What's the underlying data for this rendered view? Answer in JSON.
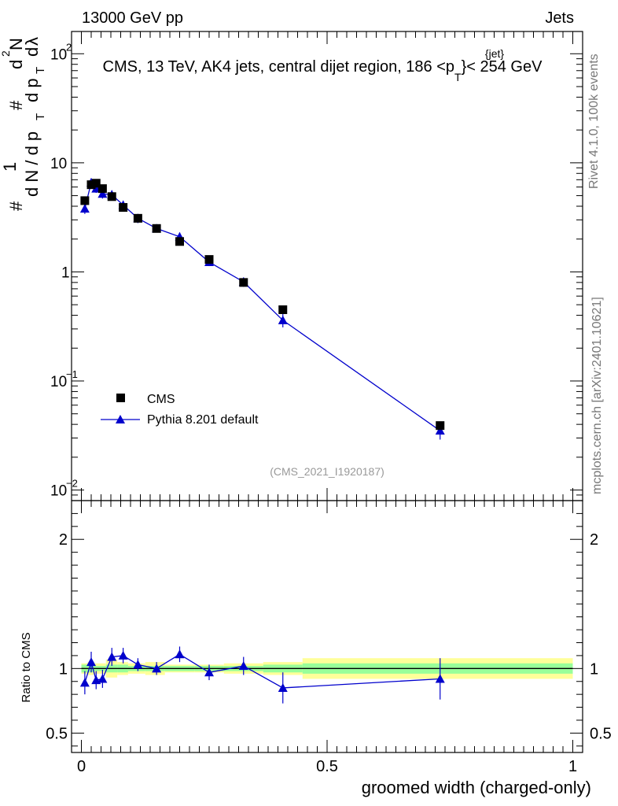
{
  "header": {
    "energy_label": "13000 GeV pp",
    "category_label": "Jets"
  },
  "side_text": {
    "rivet": "Rivet 4.1.0,  100k events",
    "mcplots": "mcplots.cern.ch [arXiv:2401.10621]"
  },
  "chart_data": [
    {
      "type": "scatter",
      "panel": "main",
      "title": "CMS, 13 TeV, AK4 jets, central dijet region, 186 <p",
      "title_sup": "{jet}",
      "title_sub": "T",
      "title_end": "}< 254 GeV",
      "ylabel_parts": [
        "#",
        "1",
        "d N / d p",
        "T",
        "#",
        "d p",
        "T",
        "d",
        "2",
        "N",
        "d",
        "λ"
      ],
      "yscale": "log",
      "ylim": [
        0.008,
        160
      ],
      "xlim": [
        -0.02,
        1.02
      ],
      "ytick_labels": [
        {
          "value": 100,
          "base": "10",
          "exp": "2"
        },
        {
          "value": 10,
          "base": "10",
          "exp": ""
        },
        {
          "value": 1,
          "base": "1",
          "exp": ""
        },
        {
          "value": 0.1,
          "base": "10",
          "exp": "−1"
        },
        {
          "value": 0.01,
          "base": "10",
          "exp": "−2"
        }
      ],
      "watermark": "(CMS_2021_I1920187)",
      "legend": {
        "placement": "center-left",
        "entries": [
          "CMS",
          "Pythia 8.201 default"
        ]
      },
      "series": [
        {
          "name": "CMS",
          "marker": "square",
          "color": "#000000",
          "x": [
            0.007,
            0.02,
            0.03,
            0.043,
            0.062,
            0.085,
            0.115,
            0.153,
            0.2,
            0.26,
            0.33,
            0.41,
            0.73
          ],
          "y": [
            4.5,
            6.3,
            6.5,
            5.8,
            4.9,
            3.9,
            3.1,
            2.5,
            1.9,
            1.3,
            0.8,
            0.45,
            0.039
          ]
        },
        {
          "name": "Pythia 8.201 default",
          "marker": "triangle",
          "color": "#0000cc",
          "x": [
            0.007,
            0.02,
            0.03,
            0.043,
            0.062,
            0.085,
            0.115,
            0.153,
            0.2,
            0.26,
            0.33,
            0.41,
            0.73
          ],
          "y": [
            3.8,
            6.6,
            5.8,
            5.2,
            5.1,
            4.1,
            3.1,
            2.5,
            2.1,
            1.23,
            0.81,
            0.36,
            0.035
          ],
          "err_lo": [
            0.4,
            0.6,
            0.5,
            0.5,
            0.5,
            0.4,
            0.3,
            0.2,
            0.2,
            0.1,
            0.08,
            0.05,
            0.006
          ],
          "err_hi": [
            0.4,
            0.6,
            0.5,
            0.5,
            0.5,
            0.4,
            0.3,
            0.2,
            0.2,
            0.1,
            0.08,
            0.05,
            0.006
          ]
        }
      ]
    },
    {
      "type": "line",
      "panel": "ratio",
      "ylabel": "Ratio to CMS",
      "xlabel": "groomed width (charged-only)",
      "ylim": [
        0.35,
        2.3
      ],
      "xlim": [
        -0.02,
        1.02
      ],
      "ytick_labels": [
        "0.5",
        "1",
        "2"
      ],
      "ytick_values": [
        0.5,
        1,
        2
      ],
      "xtick_labels": [
        "0",
        "0.5",
        "1"
      ],
      "xtick_values": [
        0,
        0.5,
        1
      ],
      "uncertainty_bands": {
        "x_edges": [
          0.0,
          0.013,
          0.025,
          0.036,
          0.05,
          0.073,
          0.095,
          0.13,
          0.17,
          0.23,
          0.29,
          0.37,
          0.45,
          1.0
        ],
        "stat_lo": [
          0.97,
          0.97,
          0.98,
          0.98,
          0.97,
          0.97,
          0.98,
          0.98,
          0.98,
          0.98,
          0.98,
          0.97,
          0.96
        ],
        "stat_hi": [
          1.03,
          1.03,
          1.02,
          1.02,
          1.03,
          1.03,
          1.02,
          1.02,
          1.02,
          1.02,
          1.02,
          1.03,
          1.04
        ],
        "total_lo": [
          0.96,
          0.95,
          0.96,
          0.96,
          0.93,
          0.95,
          0.96,
          0.95,
          0.97,
          0.97,
          0.96,
          0.95,
          0.92
        ],
        "total_hi": [
          1.04,
          1.05,
          1.04,
          1.04,
          1.07,
          1.05,
          1.04,
          1.05,
          1.03,
          1.03,
          1.04,
          1.05,
          1.08
        ]
      },
      "series": [
        {
          "name": "Pythia 8.201 default",
          "color": "#0000cc",
          "x": [
            0.007,
            0.02,
            0.03,
            0.043,
            0.062,
            0.085,
            0.115,
            0.153,
            0.2,
            0.26,
            0.33,
            0.41,
            0.73
          ],
          "y": [
            0.89,
            1.05,
            0.91,
            0.92,
            1.09,
            1.1,
            1.03,
            1.0,
            1.11,
            0.97,
            1.02,
            0.85,
            0.92
          ],
          "err_lo": [
            0.09,
            0.08,
            0.07,
            0.07,
            0.07,
            0.06,
            0.05,
            0.05,
            0.06,
            0.06,
            0.07,
            0.12,
            0.16
          ],
          "err_hi": [
            0.09,
            0.08,
            0.07,
            0.07,
            0.07,
            0.06,
            0.05,
            0.05,
            0.06,
            0.06,
            0.07,
            0.12,
            0.16
          ]
        }
      ]
    }
  ]
}
